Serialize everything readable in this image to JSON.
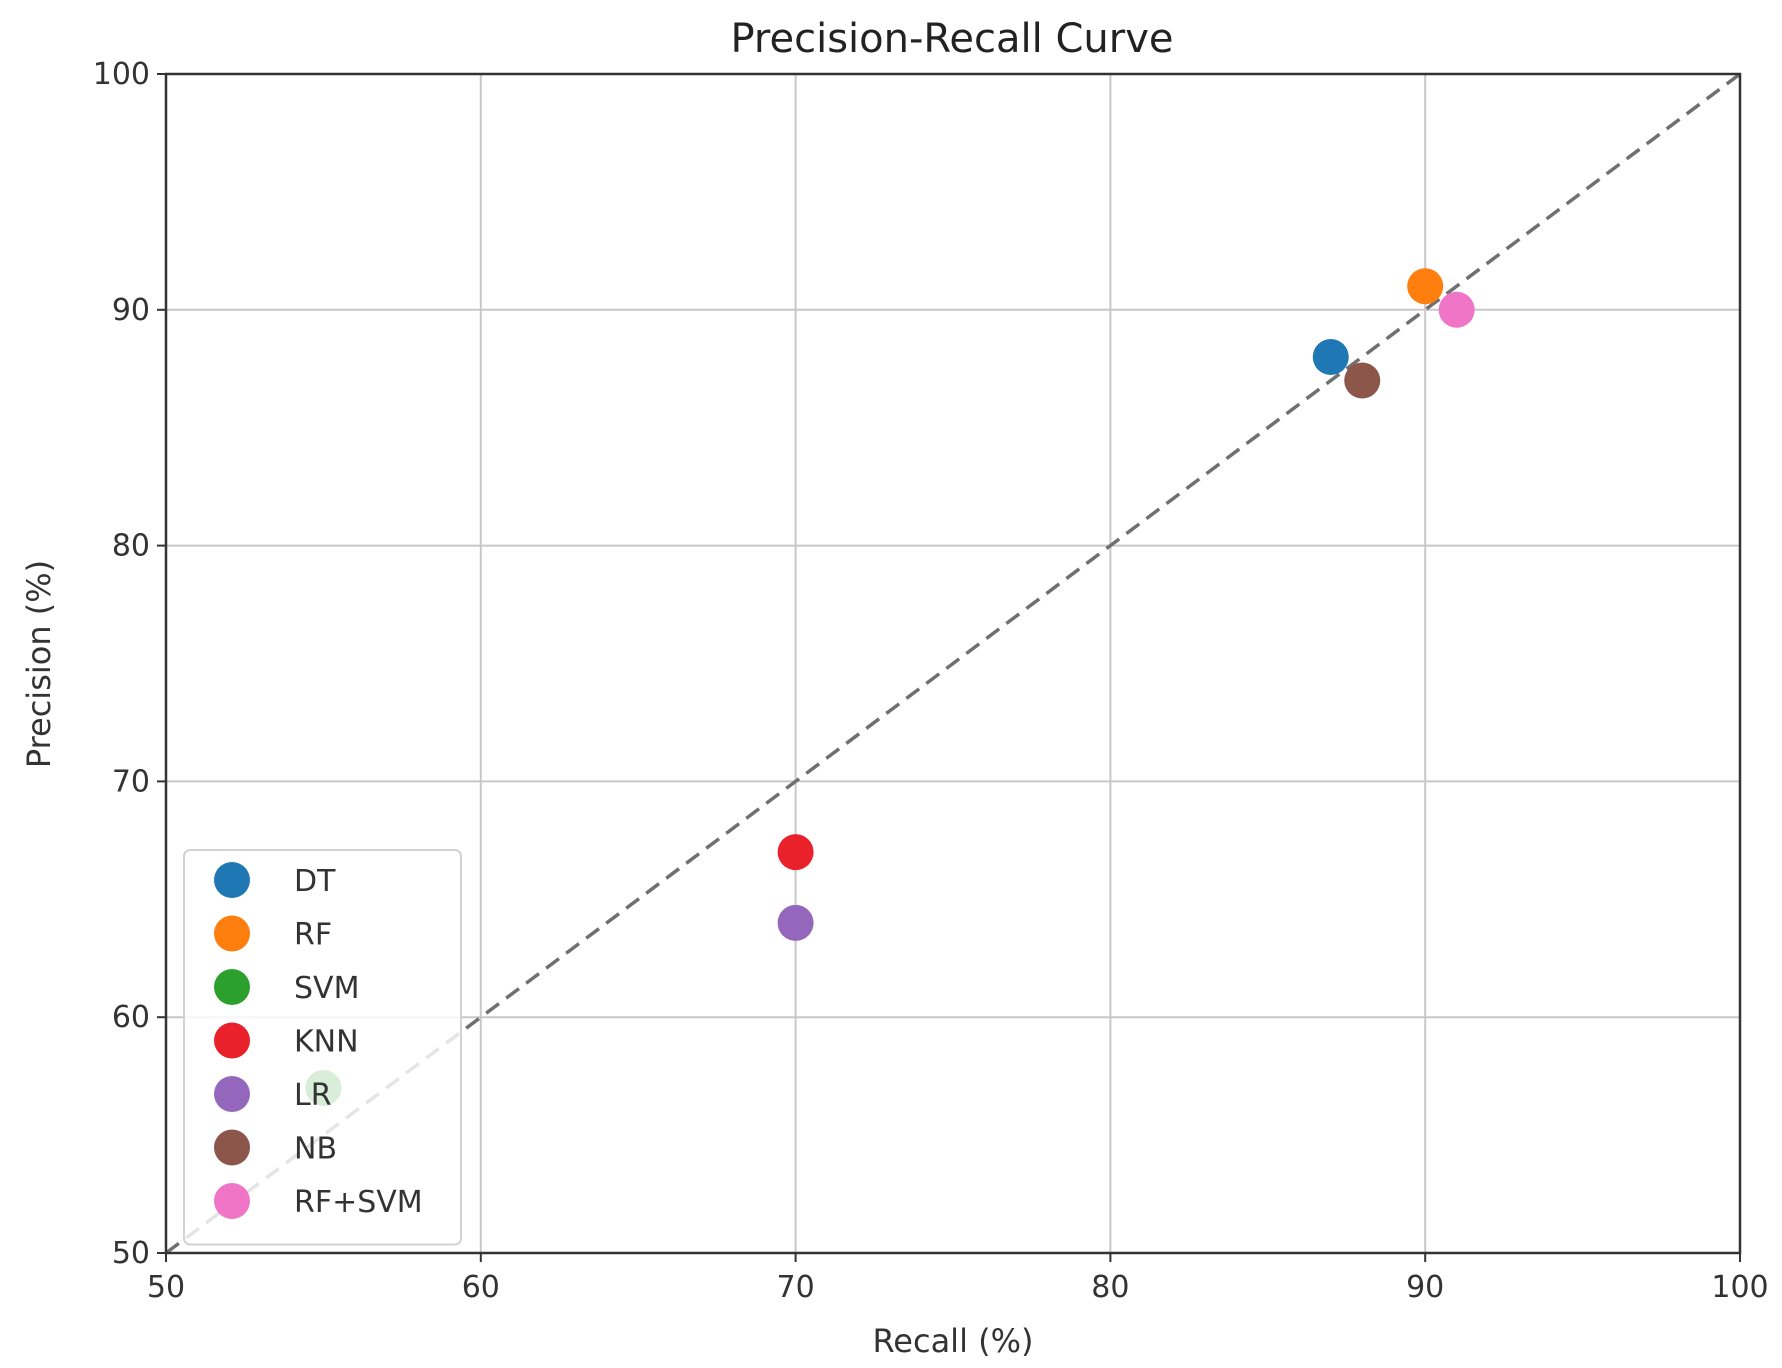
{
  "chart_data": {
    "type": "scatter",
    "title": "Precision-Recall Curve",
    "xlabel": "Recall (%)",
    "ylabel": "Precision (%)",
    "xlim": [
      50,
      100
    ],
    "ylim": [
      50,
      100
    ],
    "xticks": [
      50,
      60,
      70,
      80,
      90,
      100
    ],
    "yticks": [
      50,
      60,
      70,
      80,
      90,
      100
    ],
    "grid": true,
    "legend_position": "lower-left",
    "reference_line": {
      "style": "dashed",
      "color": "#707070",
      "from": [
        50,
        50
      ],
      "to": [
        100,
        100
      ]
    },
    "series": [
      {
        "name": "DT",
        "color": "#1f77b4",
        "x": 87,
        "y": 88
      },
      {
        "name": "RF",
        "color": "#ff7f0e",
        "x": 90,
        "y": 91
      },
      {
        "name": "SVM",
        "color": "#2ca02c",
        "x": 55,
        "y": 57
      },
      {
        "name": "KNN",
        "color": "#e8212a",
        "x": 70,
        "y": 67
      },
      {
        "name": "LR",
        "color": "#9467bd",
        "x": 70,
        "y": 64
      },
      {
        "name": "NB",
        "color": "#8c564b",
        "x": 88,
        "y": 87
      },
      {
        "name": "RF+SVM",
        "color": "#f075c7",
        "x": 91,
        "y": 90
      }
    ]
  }
}
